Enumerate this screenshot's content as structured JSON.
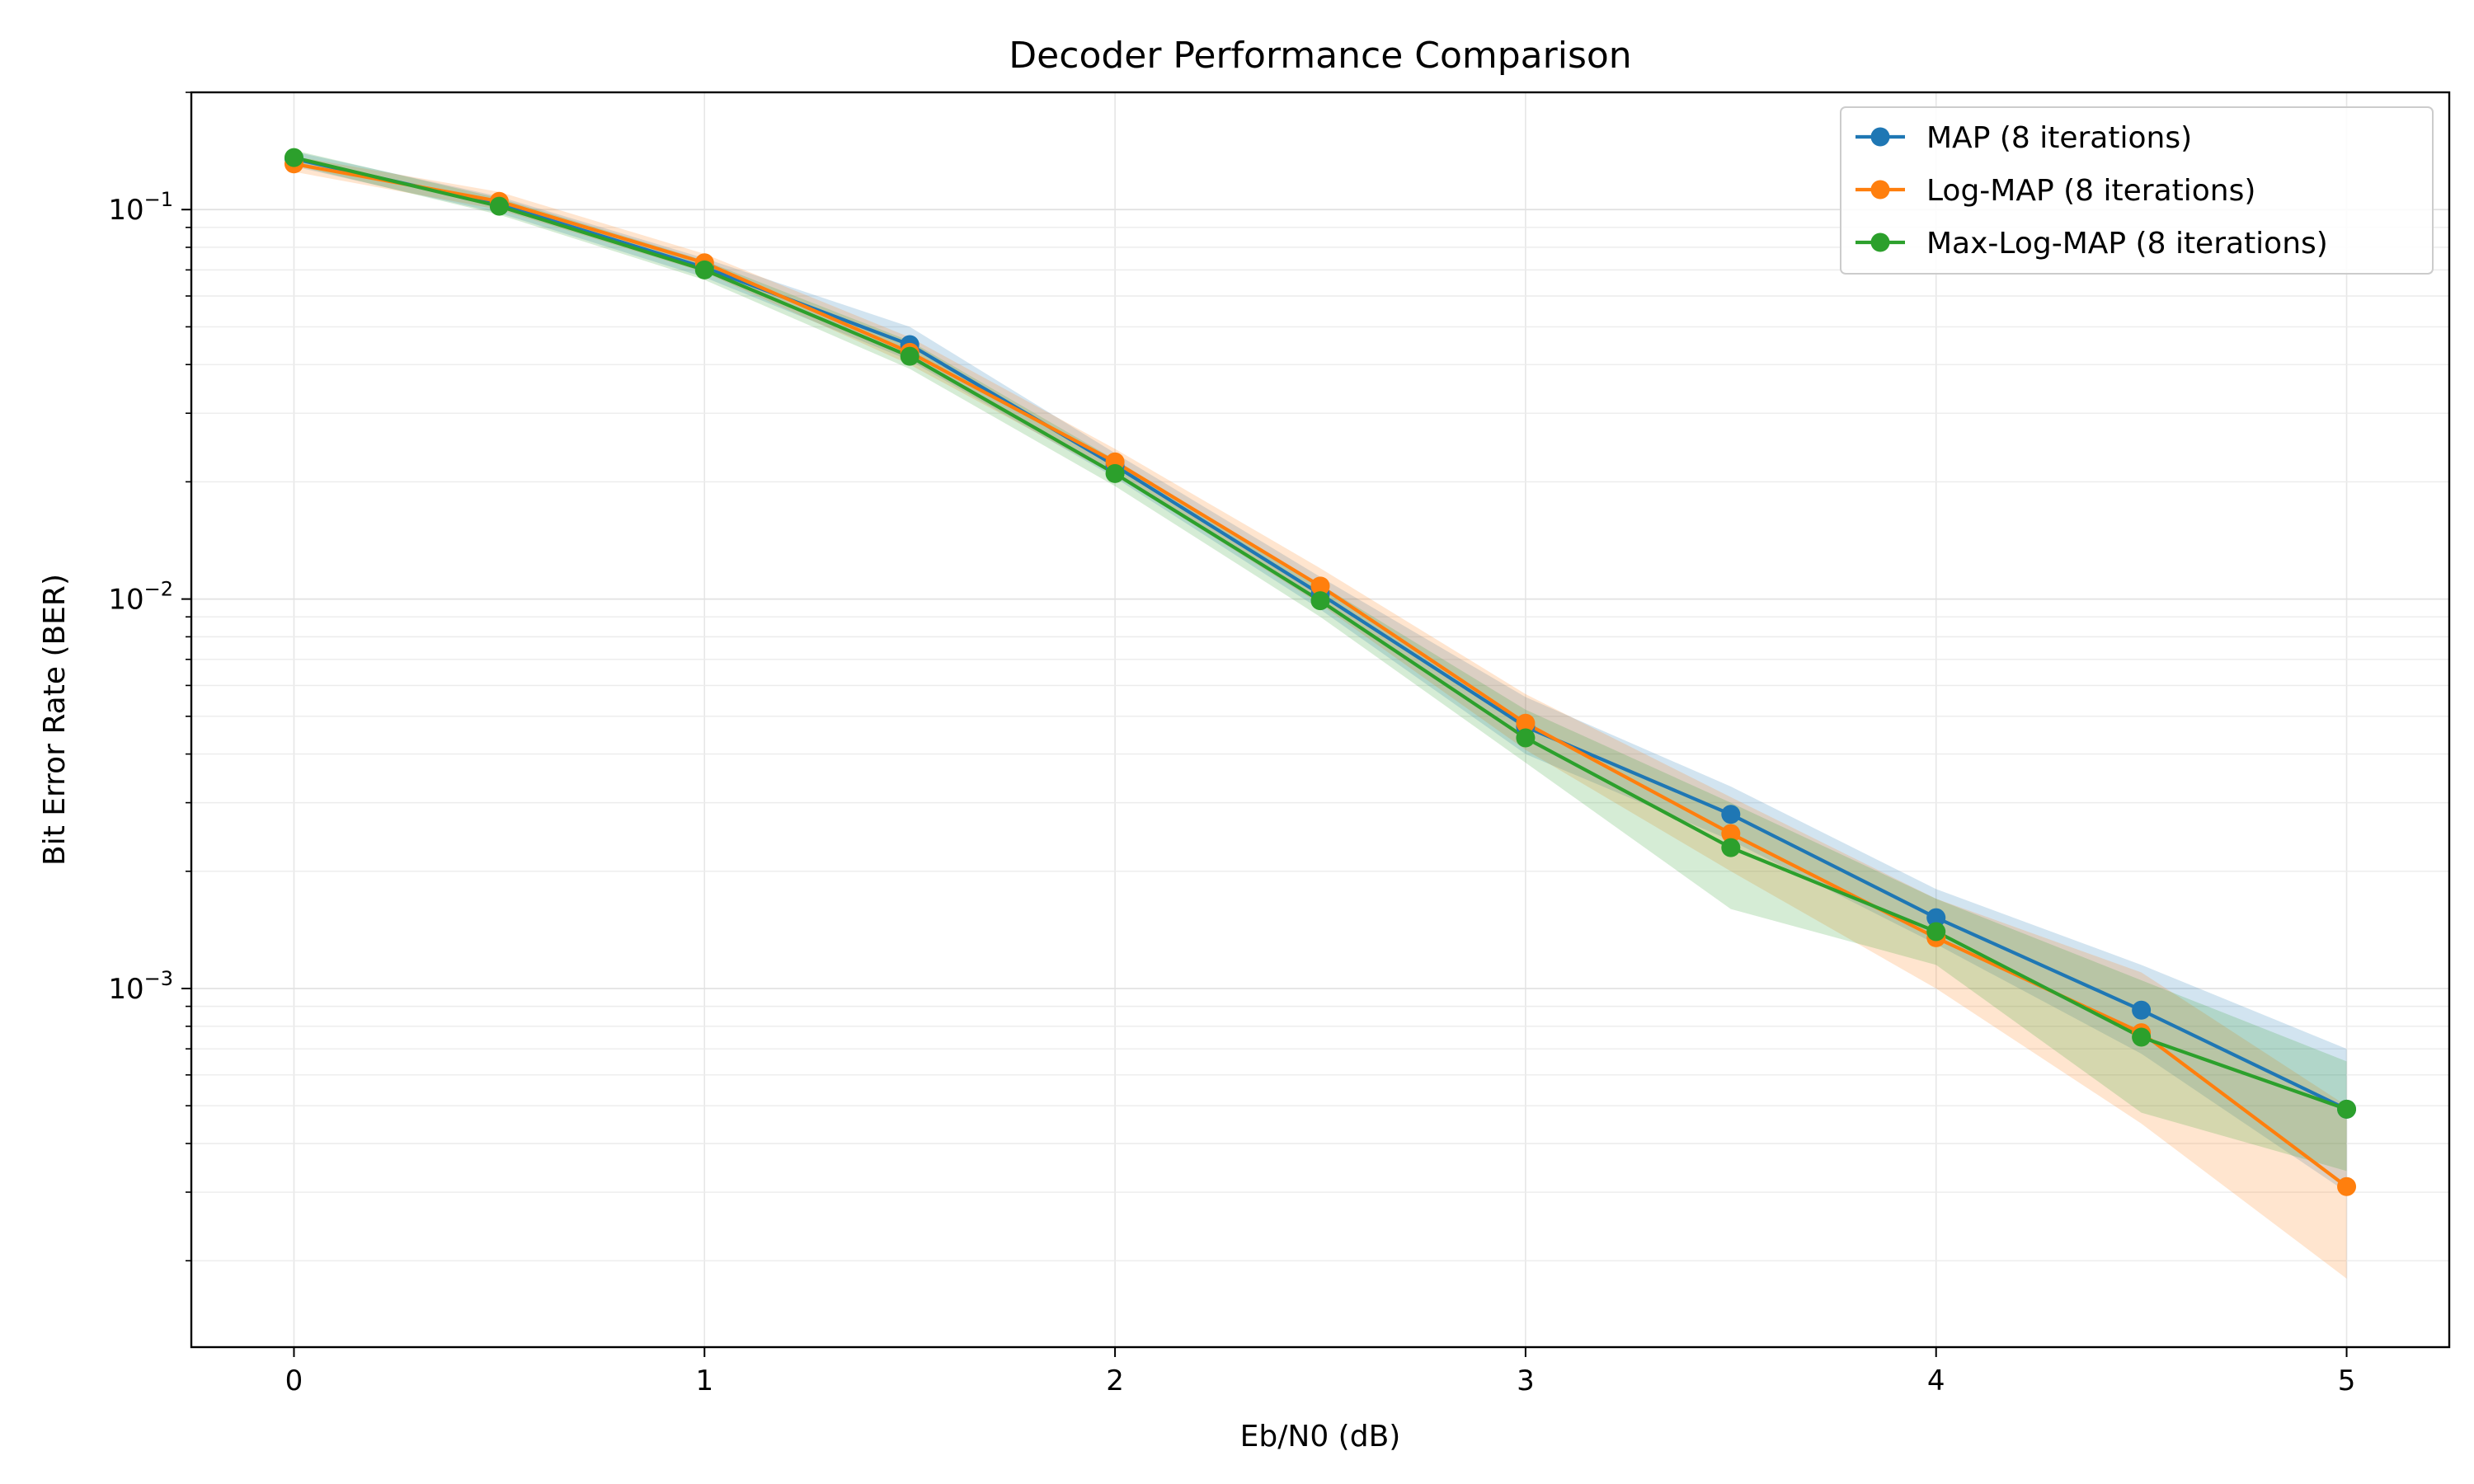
{
  "chart_data": {
    "type": "line",
    "title": "Decoder Performance Comparison",
    "xlabel": "Eb/N0 (dB)",
    "ylabel": "Bit Error Rate (BER)",
    "yscale": "log",
    "xlim": [
      -0.25,
      5.25
    ],
    "ylim": [
      0.00012,
      0.2
    ],
    "xticks": [
      "0",
      "1",
      "2",
      "3",
      "4",
      "5"
    ],
    "yticks": [
      {
        "value": 0.1,
        "base": "10",
        "exp": "−1"
      },
      {
        "value": 0.01,
        "base": "10",
        "exp": "−2"
      },
      {
        "value": 0.001,
        "base": "10",
        "exp": "−3"
      }
    ],
    "grid": true,
    "legend_position": "top-right",
    "x": [
      0,
      0.5,
      1,
      1.5,
      2,
      2.5,
      3,
      3.5,
      4,
      4.5,
      5
    ],
    "series": [
      {
        "name": "MAP (8 iterations)",
        "color": "#1f77b4",
        "values": [
          0.135,
          0.103,
          0.071,
          0.045,
          0.022,
          0.0103,
          0.0047,
          0.0028,
          0.00152,
          0.00088,
          0.00049
        ],
        "lower": [
          0.129,
          0.098,
          0.067,
          0.041,
          0.0205,
          0.0094,
          0.004,
          0.0024,
          0.0013,
          0.00068,
          0.0003
        ],
        "upper": [
          0.141,
          0.108,
          0.075,
          0.05,
          0.0237,
          0.0114,
          0.0056,
          0.0033,
          0.0018,
          0.00115,
          0.0007
        ]
      },
      {
        "name": "Log-MAP (8 iterations)",
        "color": "#ff7f0e",
        "values": [
          0.131,
          0.105,
          0.073,
          0.043,
          0.0225,
          0.0108,
          0.0048,
          0.0025,
          0.00135,
          0.00077,
          0.00031
        ],
        "lower": [
          0.125,
          0.1,
          0.069,
          0.04,
          0.0208,
          0.0097,
          0.0041,
          0.002,
          0.001,
          0.00045,
          0.00018
        ],
        "upper": [
          0.137,
          0.111,
          0.077,
          0.047,
          0.0243,
          0.012,
          0.0057,
          0.0031,
          0.0017,
          0.0011,
          0.0005
        ]
      },
      {
        "name": "Max-Log-MAP (8 iterations)",
        "color": "#2ca02c",
        "values": [
          0.136,
          0.102,
          0.07,
          0.042,
          0.021,
          0.0099,
          0.0044,
          0.0023,
          0.0014,
          0.00075,
          0.00049
        ],
        "lower": [
          0.13,
          0.097,
          0.066,
          0.039,
          0.0195,
          0.009,
          0.0038,
          0.0016,
          0.00115,
          0.00048,
          0.00034
        ],
        "upper": [
          0.142,
          0.107,
          0.074,
          0.046,
          0.0228,
          0.0109,
          0.0052,
          0.003,
          0.0017,
          0.00105,
          0.00065
        ]
      }
    ]
  }
}
